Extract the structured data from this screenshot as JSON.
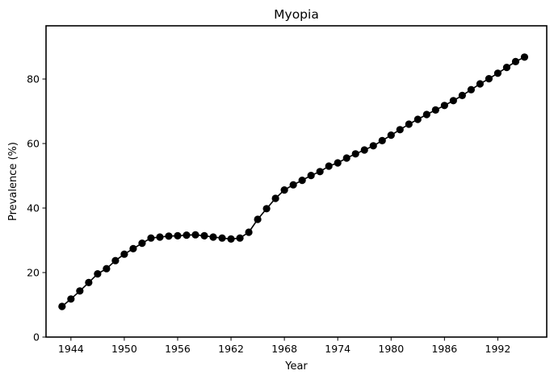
{
  "chart_data": {
    "type": "line",
    "title": "Myopia",
    "xlabel": "Year",
    "ylabel": "Prevalence (%)",
    "xlim": [
      1941.2,
      1997.5
    ],
    "ylim": [
      0,
      96.5
    ],
    "x_ticks": [
      1944,
      1950,
      1956,
      1962,
      1968,
      1974,
      1980,
      1986,
      1992
    ],
    "y_ticks": [
      0,
      20,
      40,
      60,
      80
    ],
    "grid": false,
    "marker": "circle",
    "series": [
      {
        "color": "#000000",
        "x": [
          1943,
          1944,
          1945,
          1946,
          1947,
          1948,
          1949,
          1950,
          1951,
          1952,
          1953,
          1954,
          1955,
          1956,
          1957,
          1958,
          1959,
          1960,
          1961,
          1962,
          1963,
          1964,
          1965,
          1966,
          1967,
          1968,
          1969,
          1970,
          1971,
          1972,
          1973,
          1974,
          1975,
          1976,
          1977,
          1978,
          1979,
          1980,
          1981,
          1982,
          1983,
          1984,
          1985,
          1986,
          1987,
          1988,
          1989,
          1990,
          1991,
          1992,
          1993,
          1994,
          1995
        ],
        "y": [
          9.5,
          11.8,
          14.3,
          16.9,
          19.6,
          21.2,
          23.7,
          25.7,
          27.4,
          29.1,
          30.7,
          31.0,
          31.3,
          31.4,
          31.6,
          31.7,
          31.4,
          31.0,
          30.7,
          30.4,
          30.7,
          32.5,
          36.5,
          39.8,
          43.0,
          45.6,
          47.2,
          48.6,
          50.1,
          51.3,
          53.0,
          54.0,
          55.5,
          56.8,
          58.0,
          59.3,
          60.9,
          62.6,
          64.3,
          66.0,
          67.5,
          69.0,
          70.4,
          71.8,
          73.3,
          74.9,
          76.7,
          78.5,
          80.1,
          81.8,
          83.6,
          85.4,
          86.8
        ]
      }
    ]
  }
}
